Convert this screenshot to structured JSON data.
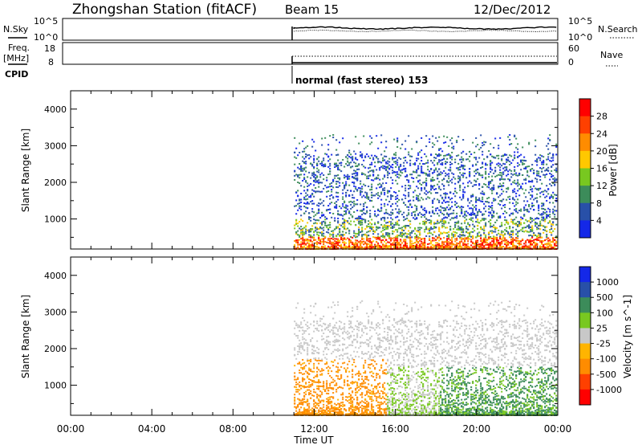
{
  "header": {
    "station": "Zhongshan Station (fitACF)",
    "beam": "Beam 15",
    "date": "12/Dec/2012"
  },
  "noise_panel": {
    "left_label": "N.Sky",
    "right_label": "N.Search",
    "left_ticks": [
      "10^5",
      "10^0"
    ],
    "right_ticks": [
      "10^5",
      "10^0"
    ]
  },
  "freq_panel": {
    "left_label_1": "Freq.",
    "left_label_2": "[MHz]",
    "right_label": "Nave",
    "left_ticks": [
      "18",
      "8"
    ],
    "right_ticks": [
      "60",
      "0"
    ]
  },
  "cpid": {
    "label": "CPID",
    "mode_text": "normal (fast stereo) 153"
  },
  "chart_data": [
    {
      "type": "heatmap",
      "name": "power",
      "ylabel": "Slant Range [km]",
      "yticks": [
        1000,
        2000,
        3000,
        4000
      ],
      "ylim": [
        180,
        4500
      ],
      "colorbar_label": "Power [dB]",
      "colorbar_ticks": [
        "28",
        "24",
        "20",
        "16",
        "12",
        "8",
        "4"
      ],
      "colorbar_colors": [
        "#ff0000",
        "#ff4000",
        "#ff8c00",
        "#ffc800",
        "#78c820",
        "#3c8c5a",
        "#2850a8",
        "#1428e8"
      ],
      "data_time_range_h": [
        11.0,
        24.0
      ]
    },
    {
      "type": "heatmap",
      "name": "velocity",
      "ylabel": "Slant Range [km]",
      "yticks": [
        1000,
        2000,
        3000,
        4000
      ],
      "ylim": [
        180,
        4500
      ],
      "colorbar_label": "Velocity [m s^-1]",
      "colorbar_ticks": [
        "1000",
        "500",
        "100",
        "25",
        "-25",
        "-100",
        "-500",
        "-1000"
      ],
      "colorbar_colors": [
        "#1428e8",
        "#2850a8",
        "#3c8c5a",
        "#78c820",
        "#c8c8c8",
        "#ffb400",
        "#ff8c00",
        "#ff4000",
        "#ff0000"
      ],
      "data_time_range_h": [
        11.0,
        24.0
      ]
    }
  ],
  "xaxis": {
    "ticks": [
      "00:00",
      "04:00",
      "08:00",
      "12:00",
      "16:00",
      "20:00",
      "00:00"
    ],
    "label": "Time UT",
    "range_h": [
      0,
      24
    ]
  }
}
